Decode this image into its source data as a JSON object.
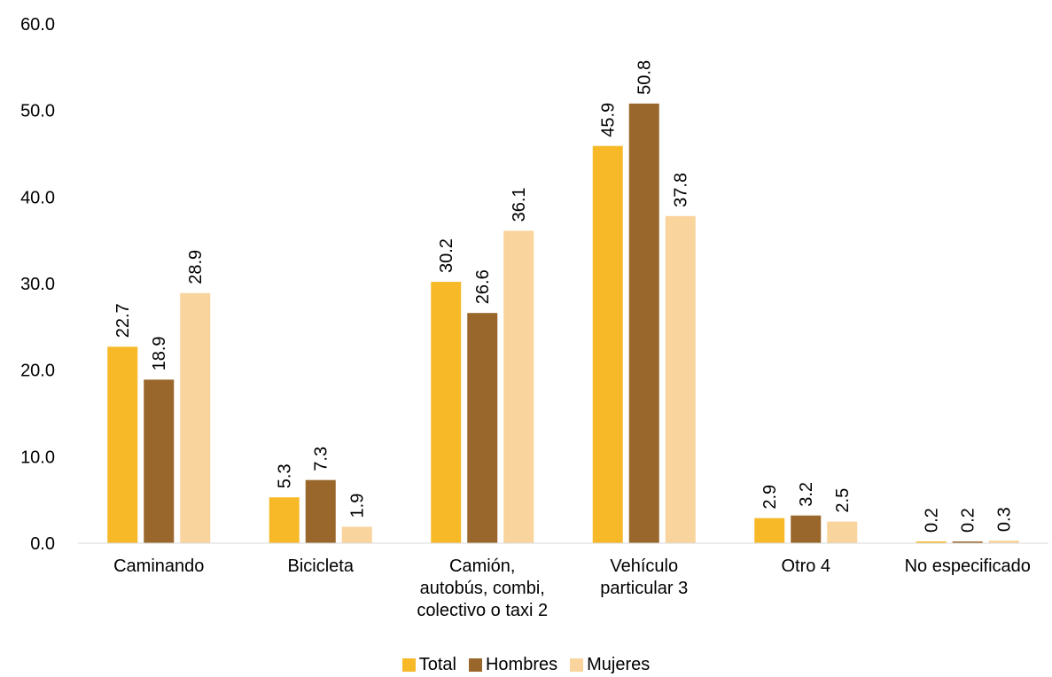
{
  "chart_data": {
    "type": "bar",
    "categories": [
      [
        "Caminando"
      ],
      [
        "Bicicleta"
      ],
      [
        "Camión,",
        "autobús, combi,",
        "colectivo o taxi 2"
      ],
      [
        "Vehículo",
        "particular 3"
      ],
      [
        "Otro 4"
      ],
      [
        "No especificado"
      ]
    ],
    "series": [
      {
        "name": "Total",
        "color": "#F7B928",
        "values": [
          22.7,
          5.3,
          30.2,
          45.9,
          2.9,
          0.2
        ]
      },
      {
        "name": "Hombres",
        "color": "#99672B",
        "values": [
          18.9,
          7.3,
          26.6,
          50.8,
          3.2,
          0.2
        ]
      },
      {
        "name": "Mujeres",
        "color": "#F9D49C",
        "values": [
          28.9,
          1.9,
          36.1,
          37.8,
          2.5,
          0.3
        ]
      }
    ],
    "ylim": [
      0,
      60
    ],
    "yticks": [
      "0.0",
      "10.0",
      "20.0",
      "30.0",
      "40.0",
      "50.0",
      "60.0"
    ],
    "grid": false,
    "legend_position": "bottom",
    "data_labels": true
  }
}
